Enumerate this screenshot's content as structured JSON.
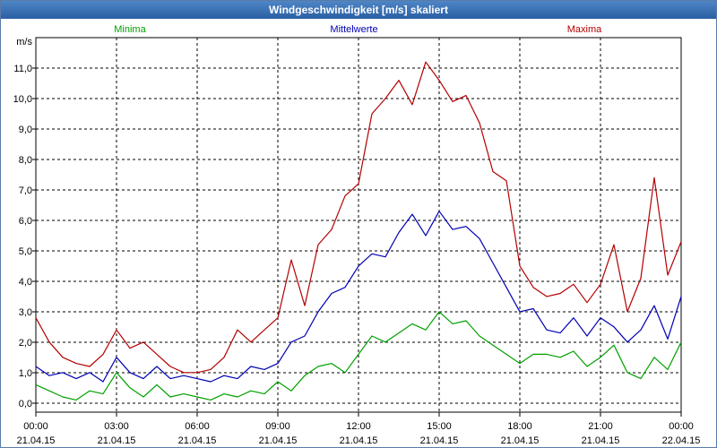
{
  "window": {
    "title": "Windgeschwindigkeit [m/s] skaliert"
  },
  "chart_data": {
    "type": "line",
    "title": "Windgeschwindigkeit [m/s] skaliert",
    "ylabel": "m/s",
    "xlabel": "",
    "ylim": [
      -0.3,
      12.0
    ],
    "xlim": [
      0,
      24
    ],
    "yticks": [
      0,
      1,
      2,
      3,
      4,
      5,
      6,
      7,
      8,
      9,
      10,
      11
    ],
    "ytick_labels": [
      "0,0",
      "1,0",
      "2,0",
      "3,0",
      "4,0",
      "5,0",
      "6,0",
      "7,0",
      "8,0",
      "9,0",
      "10,0",
      "11,0"
    ],
    "xticks": [
      {
        "x": 0,
        "time": "00:00",
        "date": "21.04.15"
      },
      {
        "x": 3,
        "time": "03:00",
        "date": "21.04.15"
      },
      {
        "x": 6,
        "time": "06:00",
        "date": "21.04.15"
      },
      {
        "x": 9,
        "time": "09:00",
        "date": "21.04.15"
      },
      {
        "x": 12,
        "time": "12:00",
        "date": "21.04.15"
      },
      {
        "x": 15,
        "time": "15:00",
        "date": "21.04.15"
      },
      {
        "x": 18,
        "time": "18:00",
        "date": "21.04.15"
      },
      {
        "x": 21,
        "time": "21:00",
        "date": "21.04.15"
      },
      {
        "x": 24,
        "time": "00:00",
        "date": "22.04.15"
      }
    ],
    "grid": true,
    "series": [
      {
        "name": "Minima",
        "color": "#00a000",
        "x": [
          0,
          0.5,
          1,
          1.5,
          2,
          2.5,
          3,
          3.5,
          4,
          4.5,
          5,
          5.5,
          6,
          6.5,
          7,
          7.5,
          8,
          8.5,
          9,
          9.5,
          10,
          10.5,
          11,
          11.5,
          12,
          12.5,
          13,
          13.5,
          14,
          14.5,
          15,
          15.5,
          16,
          16.5,
          17,
          17.5,
          18,
          18.5,
          19,
          19.5,
          20,
          20.5,
          21,
          21.5,
          22,
          22.5,
          23,
          23.5,
          24
        ],
        "values": [
          0.6,
          0.4,
          0.2,
          0.1,
          0.4,
          0.3,
          1.0,
          0.5,
          0.2,
          0.6,
          0.2,
          0.3,
          0.2,
          0.1,
          0.3,
          0.2,
          0.4,
          0.3,
          0.7,
          0.4,
          0.9,
          1.2,
          1.3,
          1.0,
          1.6,
          2.2,
          2.0,
          2.3,
          2.6,
          2.4,
          3.0,
          2.6,
          2.7,
          2.2,
          1.9,
          1.6,
          1.3,
          1.6,
          1.6,
          1.5,
          1.7,
          1.2,
          1.5,
          1.9,
          1.0,
          0.8,
          1.5,
          1.1,
          2.0
        ]
      },
      {
        "name": "Mittelwerte",
        "color": "#0000b4",
        "x": [
          0,
          0.5,
          1,
          1.5,
          2,
          2.5,
          3,
          3.5,
          4,
          4.5,
          5,
          5.5,
          6,
          6.5,
          7,
          7.5,
          8,
          8.5,
          9,
          9.5,
          10,
          10.5,
          11,
          11.5,
          12,
          12.5,
          13,
          13.5,
          14,
          14.5,
          15,
          15.5,
          16,
          16.5,
          17,
          17.5,
          18,
          18.5,
          19,
          19.5,
          20,
          20.5,
          21,
          21.5,
          22,
          22.5,
          23,
          23.5,
          24
        ],
        "values": [
          1.2,
          0.9,
          1.0,
          0.8,
          1.0,
          0.7,
          1.5,
          1.0,
          0.8,
          1.2,
          0.8,
          0.9,
          0.8,
          0.7,
          0.9,
          0.8,
          1.2,
          1.1,
          1.3,
          2.0,
          2.2,
          3.0,
          3.6,
          3.8,
          4.5,
          4.9,
          4.8,
          5.6,
          6.2,
          5.5,
          6.3,
          5.7,
          5.8,
          5.4,
          4.6,
          3.8,
          3.0,
          3.1,
          2.4,
          2.3,
          2.8,
          2.2,
          2.8,
          2.5,
          2.0,
          2.4,
          3.2,
          2.1,
          3.5
        ]
      },
      {
        "name": "Maxima",
        "color": "#b40000",
        "x": [
          0,
          0.5,
          1,
          1.5,
          2,
          2.5,
          3,
          3.5,
          4,
          4.5,
          5,
          5.5,
          6,
          6.5,
          7,
          7.5,
          8,
          8.5,
          9,
          9.5,
          10,
          10.5,
          11,
          11.5,
          12,
          12.5,
          13,
          13.5,
          14,
          14.5,
          15,
          15.5,
          16,
          16.5,
          17,
          17.5,
          18,
          18.5,
          19,
          19.5,
          20,
          20.5,
          21,
          21.5,
          22,
          22.5,
          23,
          23.5,
          24
        ],
        "values": [
          2.8,
          2.0,
          1.5,
          1.3,
          1.2,
          1.6,
          2.4,
          1.8,
          2.0,
          1.6,
          1.2,
          1.0,
          1.0,
          1.1,
          1.5,
          2.4,
          2.0,
          2.4,
          2.8,
          4.7,
          3.2,
          5.2,
          5.7,
          6.8,
          7.2,
          9.5,
          10.0,
          10.6,
          9.8,
          11.2,
          10.6,
          9.9,
          10.1,
          9.2,
          7.6,
          7.3,
          4.5,
          3.8,
          3.5,
          3.6,
          3.9,
          3.3,
          3.9,
          5.2,
          3.0,
          4.1,
          7.4,
          4.2,
          5.3
        ]
      }
    ],
    "legend": [
      {
        "label": "Minima",
        "color": "#00a000",
        "position": "left"
      },
      {
        "label": "Mittelwerte",
        "color": "#0000b4",
        "position": "center"
      },
      {
        "label": "Maxima",
        "color": "#b40000",
        "position": "right"
      }
    ]
  }
}
